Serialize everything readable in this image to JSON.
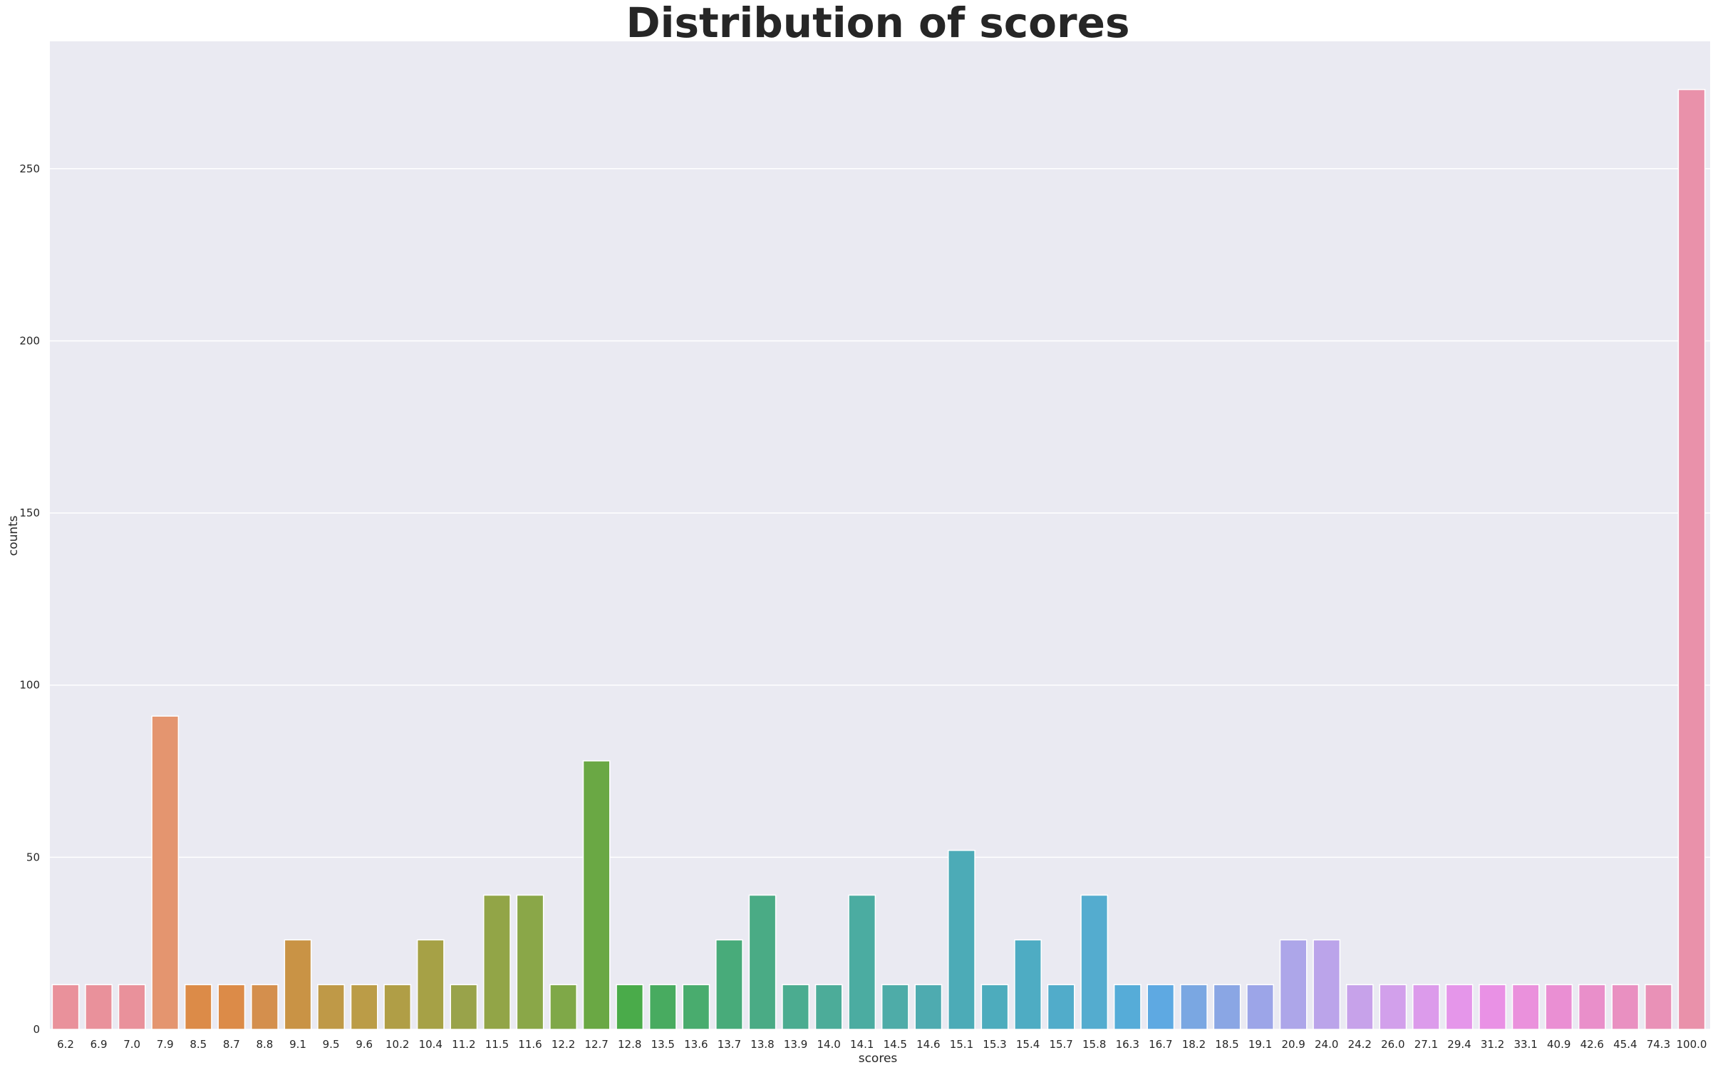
{
  "chart_data": {
    "type": "bar",
    "title": "Distribution of scores",
    "xlabel": "scores",
    "ylabel": "counts",
    "ylim": [
      0,
      287
    ],
    "yticks": [
      0,
      50,
      100,
      150,
      200,
      250
    ],
    "grid": true,
    "legend": "none",
    "categories": [
      "6.2",
      "6.9",
      "7.0",
      "7.9",
      "8.5",
      "8.7",
      "8.8",
      "9.1",
      "9.5",
      "9.6",
      "10.2",
      "10.4",
      "11.2",
      "11.5",
      "11.6",
      "12.2",
      "12.7",
      "12.8",
      "13.5",
      "13.6",
      "13.7",
      "13.8",
      "13.9",
      "14.0",
      "14.1",
      "14.5",
      "14.6",
      "15.1",
      "15.3",
      "15.4",
      "15.7",
      "15.8",
      "16.3",
      "16.7",
      "18.2",
      "18.5",
      "19.1",
      "20.9",
      "24.0",
      "24.2",
      "26.0",
      "27.1",
      "29.4",
      "31.2",
      "33.1",
      "40.9",
      "42.6",
      "45.4",
      "74.3",
      "100.0"
    ],
    "values": [
      13,
      13,
      13,
      91,
      13,
      13,
      13,
      26,
      13,
      13,
      13,
      26,
      13,
      39,
      39,
      13,
      78,
      13,
      13,
      13,
      26,
      39,
      13,
      13,
      39,
      13,
      13,
      52,
      13,
      26,
      13,
      39,
      13,
      13,
      13,
      13,
      13,
      26,
      26,
      13,
      13,
      13,
      13,
      13,
      13,
      13,
      13,
      13,
      13,
      273
    ],
    "colors": [
      "#e9919b",
      "#e9919b",
      "#e9919b",
      "#e4956f",
      "#dc8b48",
      "#dc8b48",
      "#d48f4d",
      "#c99345",
      "#bf9947",
      "#bb9c47",
      "#b09e46",
      "#a6a146",
      "#99a34a",
      "#92a547",
      "#8aa748",
      "#7fa848",
      "#6aa844",
      "#4aab4a",
      "#48ab60",
      "#49ac6e",
      "#48ab7a",
      "#4aab85",
      "#4bac90",
      "#4cac99",
      "#4baca1",
      "#4eaca8",
      "#4eabb0",
      "#4cabb7",
      "#4dacbd",
      "#4eacc3",
      "#51acca",
      "#54accf",
      "#56acd8",
      "#5ea9e2",
      "#7aa7e2",
      "#8aa6e4",
      "#9ca5e8",
      "#ada6e9",
      "#bba4ea",
      "#c7a2ea",
      "#d2a0eb",
      "#dc9beb",
      "#e596ea",
      "#e991e5",
      "#ea91dc",
      "#ea8fd3",
      "#e98fca",
      "#e990c1",
      "#e991b7",
      "#e991aa"
    ]
  }
}
